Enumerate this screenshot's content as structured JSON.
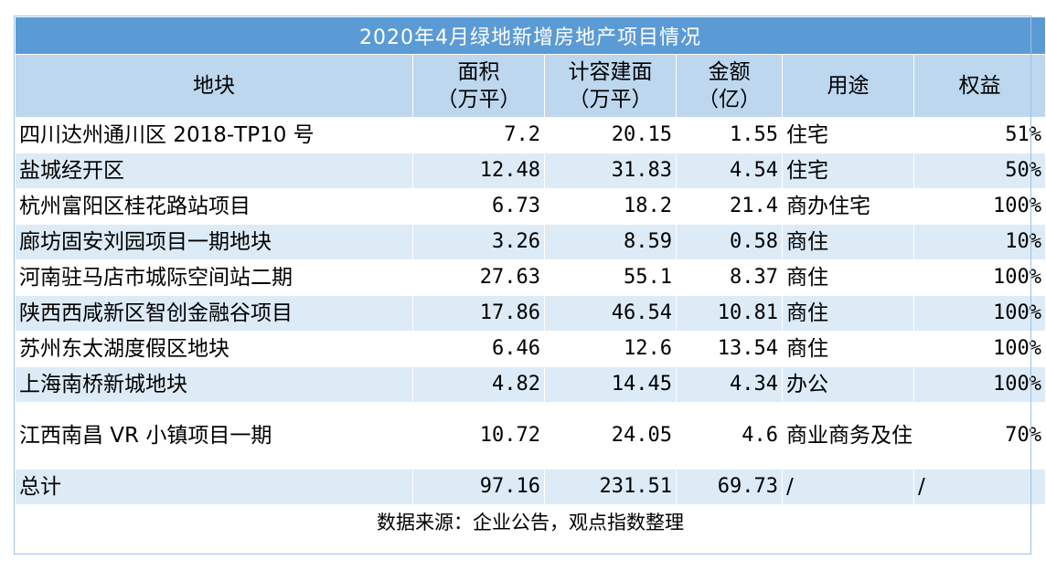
{
  "title": "2020年4月绿地新增房地产项目情况",
  "headers": {
    "parcel": "地块",
    "area_line1": "面积",
    "area_line2": "（万平）",
    "gfa_line1": "计容建面",
    "gfa_line2": "（万平）",
    "amount_line1": "金额",
    "amount_line2": "（亿）",
    "usage": "用途",
    "equity": "权益"
  },
  "rows": [
    {
      "parcel": "四川达州通川区 2018-TP10 号",
      "area": "7.2",
      "gfa": "20.15",
      "amount": "1.55",
      "usage": "住宅",
      "equity": "51%"
    },
    {
      "parcel": "盐城经开区",
      "area": "12.48",
      "gfa": "31.83",
      "amount": "4.54",
      "usage": "住宅",
      "equity": "50%"
    },
    {
      "parcel": "杭州富阳区桂花路站项目",
      "area": "6.73",
      "gfa": "18.2",
      "amount": "21.4",
      "usage": "商办住宅",
      "equity": "100%"
    },
    {
      "parcel": "廊坊固安刘园项目一期地块",
      "area": "3.26",
      "gfa": "8.59",
      "amount": "0.58",
      "usage": "商住",
      "equity": "10%"
    },
    {
      "parcel": "河南驻马店市城际空间站二期",
      "area": "27.63",
      "gfa": "55.1",
      "amount": "8.37",
      "usage": "商住",
      "equity": "100%"
    },
    {
      "parcel": "陕西西咸新区智创金融谷项目",
      "area": "17.86",
      "gfa": "46.54",
      "amount": "10.81",
      "usage": "商住",
      "equity": "100%"
    },
    {
      "parcel": "苏州东太湖度假区地块",
      "area": "6.46",
      "gfa": "12.6",
      "amount": "13.54",
      "usage": "商住",
      "equity": "100%"
    },
    {
      "parcel": "上海南桥新城地块",
      "area": "4.82",
      "gfa": "14.45",
      "amount": "4.34",
      "usage": "办公",
      "equity": "100%"
    },
    {
      "parcel": "江西南昌 VR 小镇项目一期",
      "area": "10.72",
      "gfa": "24.05",
      "amount": "4.6",
      "usage": "商业商务及住宅",
      "equity": "70%"
    }
  ],
  "total": {
    "label": "总计",
    "area": "97.16",
    "gfa": "231.51",
    "amount": "69.73",
    "usage": "/",
    "equity": "/"
  },
  "source": "数据来源：企业公告，观点指数整理",
  "colors": {
    "title_bg": "#5b9bd5",
    "header_bg": "#bdd7ee",
    "stripe_bg": "#ddebf7",
    "border": "#9bc2e6"
  }
}
